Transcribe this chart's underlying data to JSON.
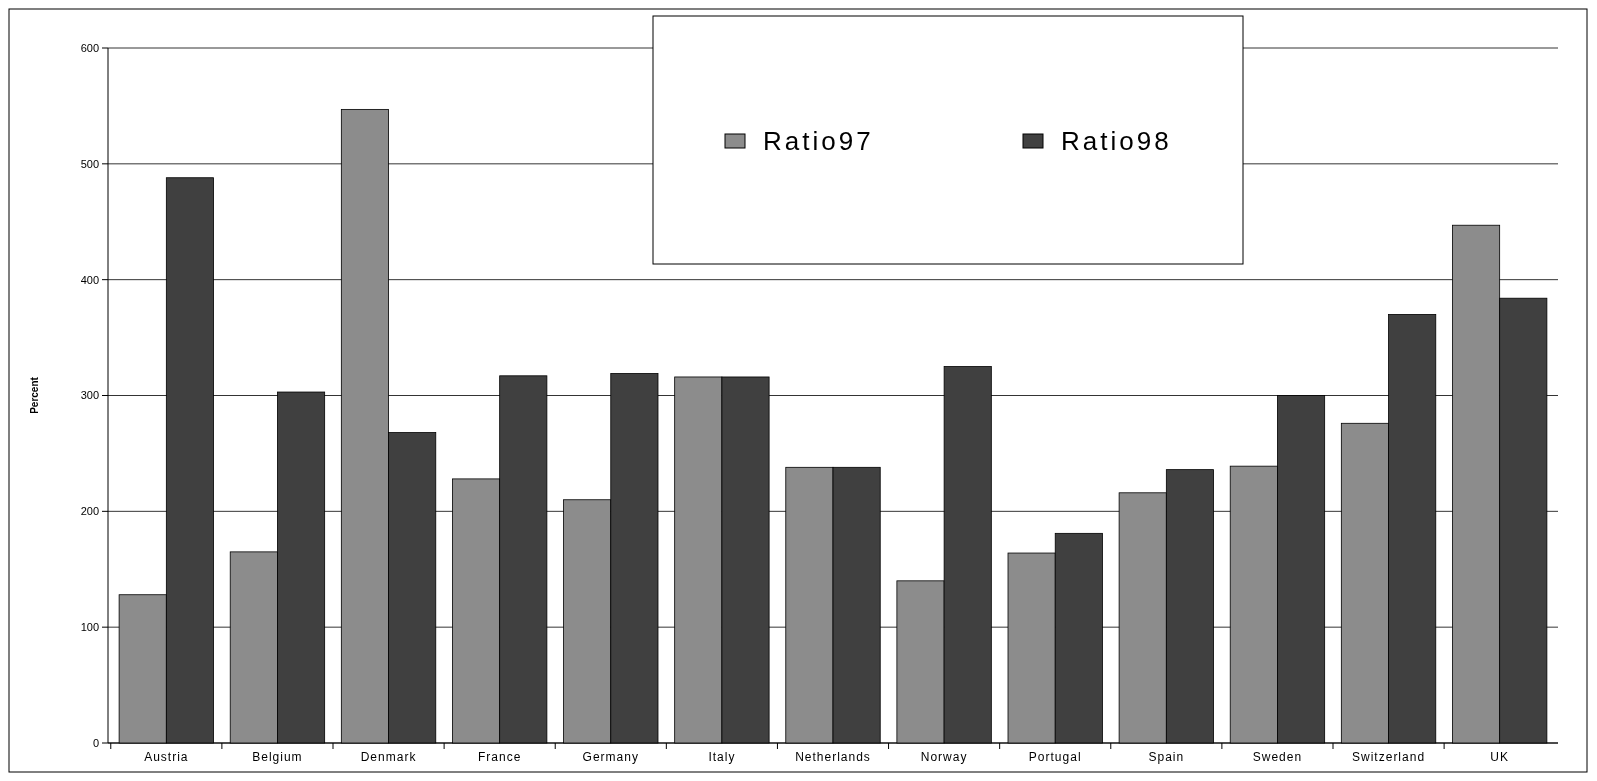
{
  "chart_data": {
    "type": "bar",
    "ylabel": "Percent",
    "categories": [
      "Austria",
      "Belgium",
      "Denmark",
      "France",
      "Germany",
      "Italy",
      "Netherlands",
      "Norway",
      "Portugal",
      "Spain",
      "Sweden",
      "Switzerland",
      "UK"
    ],
    "series": [
      {
        "name": "Ratio97",
        "color": "#8c8c8c",
        "values": [
          128,
          165,
          547,
          228,
          210,
          316,
          238,
          140,
          164,
          216,
          239,
          276,
          447
        ]
      },
      {
        "name": "Ratio98",
        "color": "#404040",
        "values": [
          488,
          303,
          268,
          317,
          319,
          316,
          238,
          325,
          181,
          236,
          300,
          370,
          384
        ]
      }
    ],
    "ylim": [
      0,
      600
    ],
    "yticks": [
      0,
      100,
      200,
      300,
      400,
      500,
      600
    ],
    "grid": "y",
    "legend": "top"
  }
}
